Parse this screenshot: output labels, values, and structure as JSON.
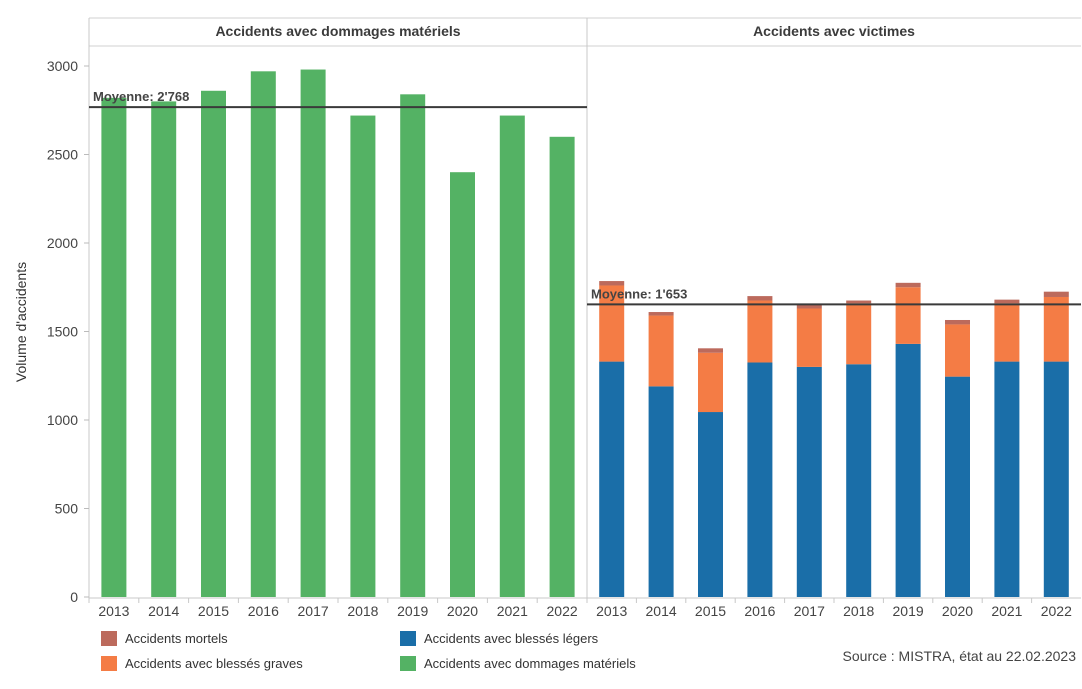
{
  "chart_data": {
    "type": "bar",
    "ylabel": "Volume d'accidents",
    "ylim": [
      0,
      3200
    ],
    "yticks": [
      0,
      500,
      1000,
      1500,
      2000,
      2500,
      3000
    ],
    "categories": [
      "2013",
      "2014",
      "2015",
      "2016",
      "2017",
      "2018",
      "2019",
      "2020",
      "2021",
      "2022"
    ],
    "grid": false,
    "legend_position": "bottom",
    "panels": [
      {
        "title": "Accidents avec dommages matériels",
        "stacked": false,
        "average": {
          "label": "Moyenne: 2'768",
          "value": 2768
        },
        "series": [
          {
            "name": "Accidents avec dommages matériels",
            "color": "#54b264",
            "values": [
              2820,
              2800,
              2860,
              2970,
              2980,
              2720,
              2840,
              2400,
              2720,
              2600
            ]
          }
        ]
      },
      {
        "title": "Accidents avec victimes",
        "stacked": true,
        "average": {
          "label": "Moyenne: 1'653",
          "value": 1653
        },
        "series": [
          {
            "name": "Accidents avec blessés légers",
            "color": "#1a6ea8",
            "values": [
              1330,
              1190,
              1045,
              1325,
              1300,
              1315,
              1430,
              1245,
              1330,
              1330
            ]
          },
          {
            "name": "Accidents avec blessés graves",
            "color": "#f47c45",
            "values": [
              430,
              400,
              335,
              350,
              330,
              345,
              320,
              295,
              330,
              365
            ]
          },
          {
            "name": "Accidents mortels",
            "color": "#bc6a5c",
            "values": [
              25,
              20,
              25,
              25,
              25,
              15,
              25,
              25,
              20,
              30
            ]
          }
        ]
      }
    ],
    "legend": [
      {
        "name": "Accidents mortels",
        "color": "#bc6a5c"
      },
      {
        "name": "Accidents avec blessés légers",
        "color": "#1a6ea8"
      },
      {
        "name": "Accidents avec blessés graves",
        "color": "#f47c45"
      },
      {
        "name": "Accidents avec dommages matériels",
        "color": "#54b264"
      }
    ],
    "source": "Source : MISTRA, état au 22.02.2023"
  }
}
